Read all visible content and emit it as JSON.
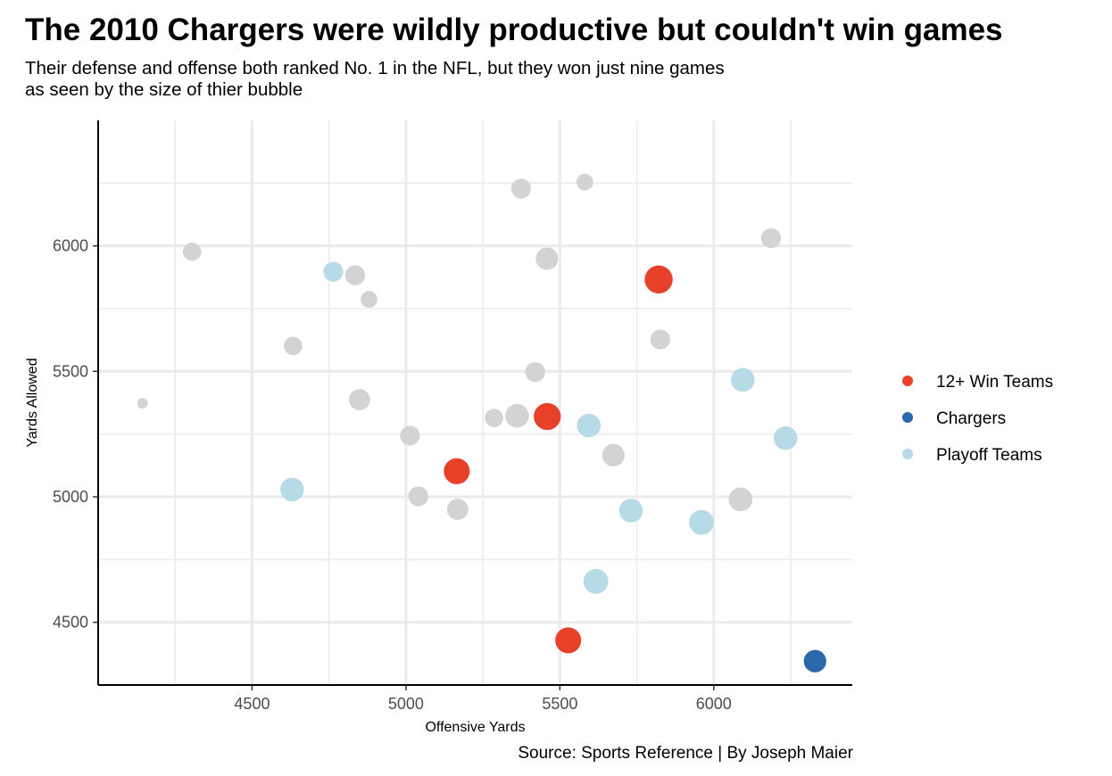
{
  "title": "The 2010 Chargers were wildly productive but couldn't win games",
  "subtitle_lines": [
    "Their defense and offense both ranked No. 1 in the NFL, but they won just nine games",
    "as seen by the size of thier bubble"
  ],
  "caption": "Source: Sports Reference | By Joseph Maier",
  "colors": {
    "12+ Win Teams": "#e8412a",
    "Chargers": "#2a67ab",
    "Playoff Teams": "#b7dbe6",
    "Other": "#d3d3d3"
  },
  "chart_data": {
    "type": "scatter",
    "title": "The 2010 Chargers were wildly productive but couldn't win games",
    "xlabel": "Offensive Yards",
    "ylabel": "Yards Allowed",
    "xlim": [
      4000,
      6450
    ],
    "ylim": [
      4250,
      6500
    ],
    "xticks": [
      4500,
      5000,
      5500,
      6000
    ],
    "yticks": [
      4500,
      5000,
      5500,
      6000
    ],
    "grid": true,
    "legend_position": "right",
    "legend": [
      "12+ Win Teams",
      "Chargers",
      "Playoff Teams"
    ],
    "size_variable": "wins",
    "points": [
      {
        "x": 4144,
        "y": 5373,
        "wins": 2,
        "group": "Other"
      },
      {
        "x": 4305,
        "y": 5977,
        "wins": 6,
        "group": "Other"
      },
      {
        "x": 4633,
        "y": 5601,
        "wins": 6,
        "group": "Other"
      },
      {
        "x": 4630,
        "y": 5029,
        "wins": 10,
        "group": "Playoff Teams"
      },
      {
        "x": 4764,
        "y": 5897,
        "wins": 7,
        "group": "Playoff Teams"
      },
      {
        "x": 4835,
        "y": 5883,
        "wins": 7,
        "group": "Other"
      },
      {
        "x": 4880,
        "y": 5787,
        "wins": 5,
        "group": "Other"
      },
      {
        "x": 4849,
        "y": 5387,
        "wins": 8,
        "group": "Other"
      },
      {
        "x": 5013,
        "y": 5244,
        "wins": 7,
        "group": "Other"
      },
      {
        "x": 5040,
        "y": 5002,
        "wins": 7,
        "group": "Other"
      },
      {
        "x": 5165,
        "y": 5102,
        "wins": 12,
        "group": "12+ Win Teams"
      },
      {
        "x": 5168,
        "y": 4950,
        "wins": 8,
        "group": "Other"
      },
      {
        "x": 5286,
        "y": 5314,
        "wins": 6,
        "group": "Other"
      },
      {
        "x": 5361,
        "y": 5323,
        "wins": 10,
        "group": "Other"
      },
      {
        "x": 5374,
        "y": 6228,
        "wins": 7,
        "group": "Other"
      },
      {
        "x": 5420,
        "y": 5497,
        "wins": 7,
        "group": "Other"
      },
      {
        "x": 5458,
        "y": 5949,
        "wins": 9,
        "group": "Other"
      },
      {
        "x": 5459,
        "y": 5320,
        "wins": 13,
        "group": "12+ Win Teams"
      },
      {
        "x": 5527,
        "y": 4428,
        "wins": 12,
        "group": "12+ Win Teams"
      },
      {
        "x": 5581,
        "y": 6254,
        "wins": 5,
        "group": "Other"
      },
      {
        "x": 5594,
        "y": 5284,
        "wins": 10,
        "group": "Playoff Teams"
      },
      {
        "x": 5617,
        "y": 4663,
        "wins": 11,
        "group": "Playoff Teams"
      },
      {
        "x": 5674,
        "y": 5166,
        "wins": 9,
        "group": "Other"
      },
      {
        "x": 5731,
        "y": 4945,
        "wins": 10,
        "group": "Playoff Teams"
      },
      {
        "x": 5821,
        "y": 5866,
        "wins": 14,
        "group": "12+ Win Teams"
      },
      {
        "x": 5826,
        "y": 5627,
        "wins": 7,
        "group": "Other"
      },
      {
        "x": 5960,
        "y": 4898,
        "wins": 11,
        "group": "Playoff Teams"
      },
      {
        "x": 6087,
        "y": 4990,
        "wins": 10,
        "group": "Other"
      },
      {
        "x": 6094,
        "y": 5466,
        "wins": 10,
        "group": "Playoff Teams"
      },
      {
        "x": 6186,
        "y": 6031,
        "wins": 7,
        "group": "Other"
      },
      {
        "x": 6233,
        "y": 5234,
        "wins": 10,
        "group": "Playoff Teams"
      },
      {
        "x": 6329,
        "y": 4345,
        "wins": 9,
        "group": "Chargers"
      }
    ]
  }
}
